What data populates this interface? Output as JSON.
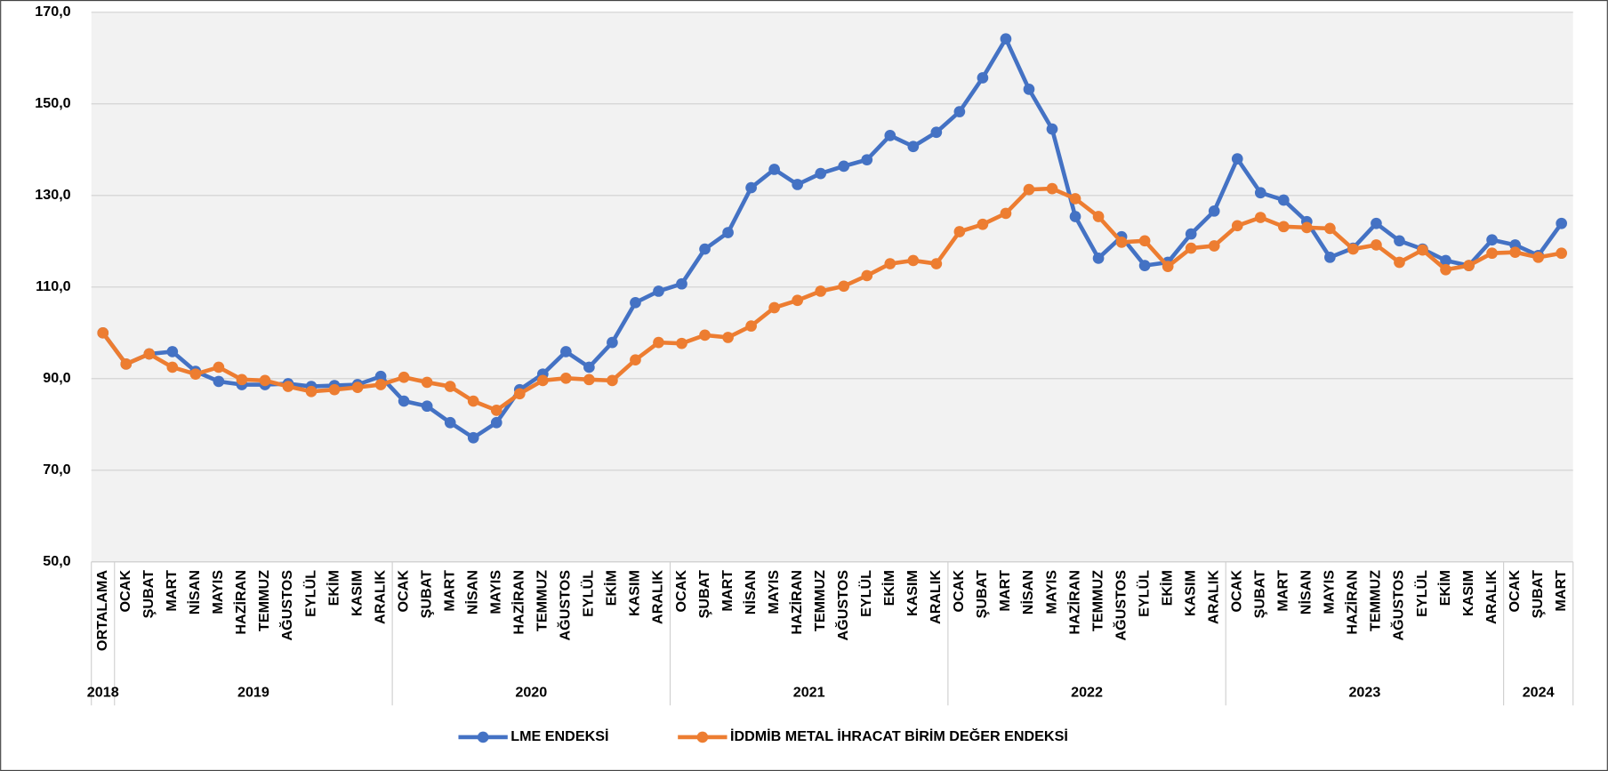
{
  "chart_data": {
    "type": "line",
    "groups": [
      {
        "label": "2018",
        "categories": [
          "ORTALAMA"
        ]
      },
      {
        "label": "2019",
        "categories": [
          "OCAK",
          "ŞUBAT",
          "MART",
          "NİSAN",
          "MAYIS",
          "HAZİRAN",
          "TEMMUZ",
          "AĞUSTOS",
          "EYLÜL",
          "EKİM",
          "KASIM",
          "ARALIK"
        ]
      },
      {
        "label": "2020",
        "categories": [
          "OCAK",
          "ŞUBAT",
          "MART",
          "NİSAN",
          "MAYIS",
          "HAZİRAN",
          "TEMMUZ",
          "AĞUSTOS",
          "EYLÜL",
          "EKİM",
          "KASIM",
          "ARALIK"
        ]
      },
      {
        "label": "2021",
        "categories": [
          "OCAK",
          "ŞUBAT",
          "MART",
          "NİSAN",
          "MAYIS",
          "HAZİRAN",
          "TEMMUZ",
          "AĞUSTOS",
          "EYLÜL",
          "EKİM",
          "KASIM",
          "ARALIK"
        ]
      },
      {
        "label": "2022",
        "categories": [
          "OCAK",
          "ŞUBAT",
          "MART",
          "NİSAN",
          "MAYIS",
          "HAZİRAN",
          "TEMMUZ",
          "AĞUSTOS",
          "EYLÜL",
          "EKİM",
          "KASIM",
          "ARALIK"
        ]
      },
      {
        "label": "2023",
        "categories": [
          "OCAK",
          "ŞUBAT",
          "MART",
          "NİSAN",
          "MAYIS",
          "HAZİRAN",
          "TEMMUZ",
          "AĞUSTOS",
          "EYLÜL",
          "EKİM",
          "KASIM",
          "ARALIK"
        ]
      },
      {
        "label": "2024",
        "categories": [
          "OCAK",
          "ŞUBAT",
          "MART"
        ]
      }
    ],
    "series": [
      {
        "name": "LME ENDEKSİ",
        "color": "#4472c4",
        "values": [
          100.0,
          93.2,
          95.4,
          95.9,
          91.6,
          89.4,
          88.7,
          88.7,
          88.9,
          88.3,
          88.5,
          88.7,
          90.5,
          85.1,
          84.0,
          80.4,
          77.1,
          80.4,
          87.6,
          91.0,
          95.9,
          92.5,
          97.9,
          106.6,
          109.1,
          110.7,
          118.3,
          121.9,
          131.7,
          135.7,
          132.4,
          134.8,
          136.4,
          137.8,
          143.1,
          140.7,
          143.8,
          148.3,
          155.7,
          164.2,
          153.2,
          144.5,
          125.4,
          116.3,
          121.0,
          114.7,
          115.4,
          121.6,
          126.6,
          138.0,
          130.6,
          129.0,
          124.3,
          116.5,
          118.5,
          123.9,
          120.1,
          118.3,
          115.8,
          114.7,
          120.3,
          119.2,
          116.9,
          123.9
        ]
      },
      {
        "name": "İDDMİB METAL İHRACAT BİRİM DEĞER ENDEKSİ",
        "color": "#ed7d31",
        "values": [
          100.0,
          93.2,
          95.4,
          92.5,
          91.0,
          92.5,
          89.8,
          89.6,
          88.3,
          87.2,
          87.6,
          88.1,
          88.7,
          90.3,
          89.2,
          88.3,
          85.1,
          83.1,
          86.7,
          89.6,
          90.1,
          89.8,
          89.6,
          94.1,
          97.9,
          97.7,
          99.5,
          99.0,
          101.5,
          105.5,
          107.1,
          109.1,
          110.2,
          112.5,
          115.1,
          115.8,
          115.1,
          122.1,
          123.7,
          126.1,
          131.3,
          131.5,
          129.3,
          125.4,
          119.8,
          120.1,
          114.5,
          118.5,
          119.0,
          123.4,
          125.2,
          123.2,
          123.0,
          122.8,
          118.3,
          119.2,
          115.4,
          118.1,
          113.8,
          114.7,
          117.4,
          117.6,
          116.5,
          117.4
        ]
      }
    ],
    "ylim": [
      50,
      170
    ],
    "yticks": [
      {
        "value": 50,
        "label": "50,0"
      },
      {
        "value": 70,
        "label": "70,0"
      },
      {
        "value": 90,
        "label": "90,0"
      },
      {
        "value": 110,
        "label": "110,0"
      },
      {
        "value": 130,
        "label": "130,0"
      },
      {
        "value": 150,
        "label": "150,0"
      },
      {
        "value": 170,
        "label": "170,0"
      }
    ],
    "grid": true,
    "legend": "bottom"
  }
}
